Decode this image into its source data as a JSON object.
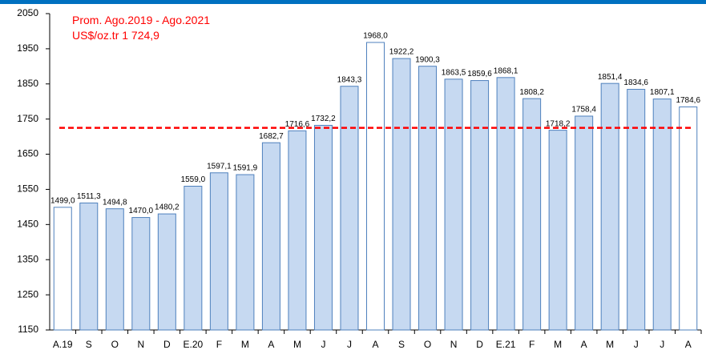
{
  "chart_data": {
    "type": "bar",
    "categories": [
      "A.19",
      "S",
      "O",
      "N",
      "D",
      "E.20",
      "F",
      "M",
      "A",
      "M",
      "J",
      "J",
      "A",
      "S",
      "O",
      "N",
      "D",
      "E.21",
      "F",
      "M",
      "A",
      "M",
      "J",
      "J",
      "A"
    ],
    "values": [
      1499.0,
      1511.3,
      1494.8,
      1470.0,
      1480.2,
      1559.0,
      1597.1,
      1591.9,
      1682.7,
      1716.6,
      1732.2,
      1843.3,
      1968.0,
      1922.2,
      1900.3,
      1863.5,
      1859.6,
      1868.1,
      1808.2,
      1718.2,
      1758.4,
      1851.4,
      1834.6,
      1807.1,
      1784.6
    ],
    "value_labels": [
      "1499,0",
      "1511,3",
      "1494,8",
      "1470,0",
      "1480,2",
      "1559,0",
      "1597,1",
      "1591,9",
      "1682,7",
      "1716,6",
      "1732,2",
      "1843,3",
      "1968,0",
      "1922,2",
      "1900,3",
      "1863,5",
      "1859,6",
      "1868,1",
      "1808,2",
      "1718,2",
      "1758,4",
      "1851,4",
      "1834,6",
      "1807,1",
      "1784,6"
    ],
    "colors": [
      "#ffffff",
      "#c6d9f1",
      "#c6d9f1",
      "#c6d9f1",
      "#c6d9f1",
      "#c6d9f1",
      "#c6d9f1",
      "#c6d9f1",
      "#c6d9f1",
      "#c6d9f1",
      "#c6d9f1",
      "#c6d9f1",
      "#ffffff",
      "#c6d9f1",
      "#c6d9f1",
      "#c6d9f1",
      "#c6d9f1",
      "#c6d9f1",
      "#c6d9f1",
      "#c6d9f1",
      "#c6d9f1",
      "#c6d9f1",
      "#c6d9f1",
      "#c6d9f1",
      "#ffffff"
    ],
    "edge_color": "#4f81bd",
    "ylim": [
      1150,
      2050
    ],
    "yticks": [
      1150,
      1250,
      1350,
      1450,
      1550,
      1650,
      1750,
      1850,
      1950,
      2050
    ],
    "reference_line": {
      "value": 1724.9,
      "color": "#ff0000"
    },
    "annotations": [
      "Prom. Ago.2019 - Ago.2021",
      "US$/oz.tr 1 724,9"
    ]
  }
}
